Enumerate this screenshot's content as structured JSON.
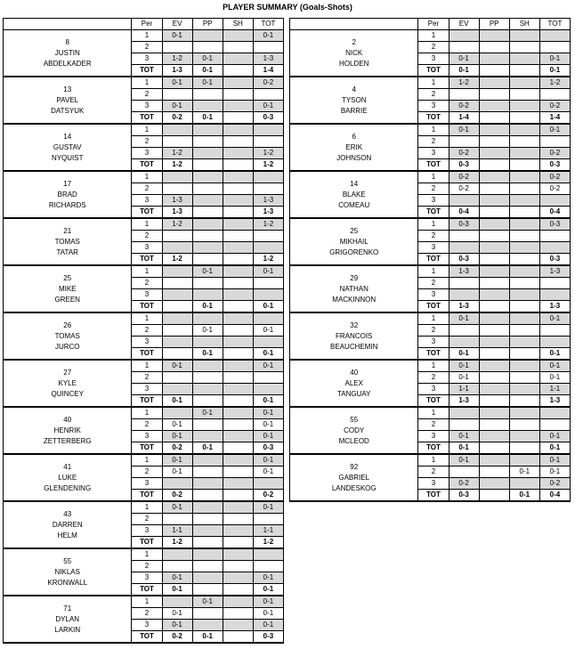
{
  "title": "PLAYER SUMMARY (Goals-Shots)",
  "headers": [
    "Per",
    "EV",
    "PP",
    "SH",
    "TOT"
  ],
  "left_players": [
    {
      "number": "8",
      "first": "JUSTIN",
      "last": "ABDELKADER",
      "rows": [
        {
          "per": "1",
          "ev": "0-1",
          "pp": "",
          "sh": "",
          "tot": "0-1"
        },
        {
          "per": "2",
          "ev": "",
          "pp": "",
          "sh": "",
          "tot": ""
        },
        {
          "per": "3",
          "ev": "1-2",
          "pp": "0-1",
          "sh": "",
          "tot": "1-3"
        },
        {
          "per": "TOT",
          "ev": "1-3",
          "pp": "0-1",
          "sh": "",
          "tot": "1-4"
        }
      ]
    },
    {
      "number": "13",
      "first": "PAVEL",
      "last": "DATSYUK",
      "rows": [
        {
          "per": "1",
          "ev": "0-1",
          "pp": "0-1",
          "sh": "",
          "tot": "0-2"
        },
        {
          "per": "2",
          "ev": "",
          "pp": "",
          "sh": "",
          "tot": ""
        },
        {
          "per": "3",
          "ev": "0-1",
          "pp": "",
          "sh": "",
          "tot": "0-1"
        },
        {
          "per": "TOT",
          "ev": "0-2",
          "pp": "0-1",
          "sh": "",
          "tot": "0-3"
        }
      ]
    },
    {
      "number": "14",
      "first": "GUSTAV",
      "last": "NYQUIST",
      "rows": [
        {
          "per": "1",
          "ev": "",
          "pp": "",
          "sh": "",
          "tot": ""
        },
        {
          "per": "2",
          "ev": "",
          "pp": "",
          "sh": "",
          "tot": ""
        },
        {
          "per": "3",
          "ev": "1-2",
          "pp": "",
          "sh": "",
          "tot": "1-2"
        },
        {
          "per": "TOT",
          "ev": "1-2",
          "pp": "",
          "sh": "",
          "tot": "1-2"
        }
      ]
    },
    {
      "number": "17",
      "first": "BRAD",
      "last": "RICHARDS",
      "rows": [
        {
          "per": "1",
          "ev": "",
          "pp": "",
          "sh": "",
          "tot": ""
        },
        {
          "per": "2",
          "ev": "",
          "pp": "",
          "sh": "",
          "tot": ""
        },
        {
          "per": "3",
          "ev": "1-3",
          "pp": "",
          "sh": "",
          "tot": "1-3"
        },
        {
          "per": "TOT",
          "ev": "1-3",
          "pp": "",
          "sh": "",
          "tot": "1-3"
        }
      ]
    },
    {
      "number": "21",
      "first": "TOMAS",
      "last": "TATAR",
      "rows": [
        {
          "per": "1",
          "ev": "1-2",
          "pp": "",
          "sh": "",
          "tot": "1-2"
        },
        {
          "per": "2",
          "ev": "",
          "pp": "",
          "sh": "",
          "tot": ""
        },
        {
          "per": "3",
          "ev": "",
          "pp": "",
          "sh": "",
          "tot": ""
        },
        {
          "per": "TOT",
          "ev": "1-2",
          "pp": "",
          "sh": "",
          "tot": "1-2"
        }
      ]
    },
    {
      "number": "25",
      "first": "MIKE",
      "last": "GREEN",
      "rows": [
        {
          "per": "1",
          "ev": "",
          "pp": "0-1",
          "sh": "",
          "tot": "0-1"
        },
        {
          "per": "2",
          "ev": "",
          "pp": "",
          "sh": "",
          "tot": ""
        },
        {
          "per": "3",
          "ev": "",
          "pp": "",
          "sh": "",
          "tot": ""
        },
        {
          "per": "TOT",
          "ev": "",
          "pp": "0-1",
          "sh": "",
          "tot": "0-1"
        }
      ]
    },
    {
      "number": "26",
      "first": "TOMAS",
      "last": "JURCO",
      "rows": [
        {
          "per": "1",
          "ev": "",
          "pp": "",
          "sh": "",
          "tot": ""
        },
        {
          "per": "2",
          "ev": "",
          "pp": "0-1",
          "sh": "",
          "tot": "0-1"
        },
        {
          "per": "3",
          "ev": "",
          "pp": "",
          "sh": "",
          "tot": ""
        },
        {
          "per": "TOT",
          "ev": "",
          "pp": "0-1",
          "sh": "",
          "tot": "0-1"
        }
      ]
    },
    {
      "number": "27",
      "first": "KYLE",
      "last": "QUINCEY",
      "rows": [
        {
          "per": "1",
          "ev": "0-1",
          "pp": "",
          "sh": "",
          "tot": "0-1"
        },
        {
          "per": "2",
          "ev": "",
          "pp": "",
          "sh": "",
          "tot": ""
        },
        {
          "per": "3",
          "ev": "",
          "pp": "",
          "sh": "",
          "tot": ""
        },
        {
          "per": "TOT",
          "ev": "0-1",
          "pp": "",
          "sh": "",
          "tot": "0-1"
        }
      ]
    },
    {
      "number": "40",
      "first": "HENRIK",
      "last": "ZETTERBERG",
      "rows": [
        {
          "per": "1",
          "ev": "",
          "pp": "0-1",
          "sh": "",
          "tot": "0-1"
        },
        {
          "per": "2",
          "ev": "0-1",
          "pp": "",
          "sh": "",
          "tot": "0-1"
        },
        {
          "per": "3",
          "ev": "0-1",
          "pp": "",
          "sh": "",
          "tot": "0-1"
        },
        {
          "per": "TOT",
          "ev": "0-2",
          "pp": "0-1",
          "sh": "",
          "tot": "0-3"
        }
      ]
    },
    {
      "number": "41",
      "first": "LUKE",
      "last": "GLENDENING",
      "rows": [
        {
          "per": "1",
          "ev": "0-1",
          "pp": "",
          "sh": "",
          "tot": "0-1"
        },
        {
          "per": "2",
          "ev": "0-1",
          "pp": "",
          "sh": "",
          "tot": "0-1"
        },
        {
          "per": "3",
          "ev": "",
          "pp": "",
          "sh": "",
          "tot": ""
        },
        {
          "per": "TOT",
          "ev": "0-2",
          "pp": "",
          "sh": "",
          "tot": "0-2"
        }
      ]
    },
    {
      "number": "43",
      "first": "DARREN",
      "last": "HELM",
      "rows": [
        {
          "per": "1",
          "ev": "0-1",
          "pp": "",
          "sh": "",
          "tot": "0-1"
        },
        {
          "per": "2",
          "ev": "",
          "pp": "",
          "sh": "",
          "tot": ""
        },
        {
          "per": "3",
          "ev": "1-1",
          "pp": "",
          "sh": "",
          "tot": "1-1"
        },
        {
          "per": "TOT",
          "ev": "1-2",
          "pp": "",
          "sh": "",
          "tot": "1-2"
        }
      ]
    },
    {
      "number": "55",
      "first": "NIKLAS",
      "last": "KRONWALL",
      "rows": [
        {
          "per": "1",
          "ev": "",
          "pp": "",
          "sh": "",
          "tot": ""
        },
        {
          "per": "2",
          "ev": "",
          "pp": "",
          "sh": "",
          "tot": ""
        },
        {
          "per": "3",
          "ev": "0-1",
          "pp": "",
          "sh": "",
          "tot": "0-1"
        },
        {
          "per": "TOT",
          "ev": "0-1",
          "pp": "",
          "sh": "",
          "tot": "0-1"
        }
      ]
    },
    {
      "number": "71",
      "first": "DYLAN",
      "last": "LARKIN",
      "rows": [
        {
          "per": "1",
          "ev": "",
          "pp": "0-1",
          "sh": "",
          "tot": "0-1"
        },
        {
          "per": "2",
          "ev": "0-1",
          "pp": "",
          "sh": "",
          "tot": "0-1"
        },
        {
          "per": "3",
          "ev": "0-1",
          "pp": "",
          "sh": "",
          "tot": "0-1"
        },
        {
          "per": "TOT",
          "ev": "0-2",
          "pp": "0-1",
          "sh": "",
          "tot": "0-3"
        }
      ]
    }
  ],
  "right_players": [
    {
      "number": "2",
      "first": "NICK",
      "last": "HOLDEN",
      "rows": [
        {
          "per": "1",
          "ev": "",
          "pp": "",
          "sh": "",
          "tot": ""
        },
        {
          "per": "2",
          "ev": "",
          "pp": "",
          "sh": "",
          "tot": ""
        },
        {
          "per": "3",
          "ev": "0-1",
          "pp": "",
          "sh": "",
          "tot": "0-1"
        },
        {
          "per": "TOT",
          "ev": "0-1",
          "pp": "",
          "sh": "",
          "tot": "0-1"
        }
      ]
    },
    {
      "number": "4",
      "first": "TYSON",
      "last": "BARRIE",
      "rows": [
        {
          "per": "1",
          "ev": "1-2",
          "pp": "",
          "sh": "",
          "tot": "1-2"
        },
        {
          "per": "2",
          "ev": "",
          "pp": "",
          "sh": "",
          "tot": ""
        },
        {
          "per": "3",
          "ev": "0-2",
          "pp": "",
          "sh": "",
          "tot": "0-2"
        },
        {
          "per": "TOT",
          "ev": "1-4",
          "pp": "",
          "sh": "",
          "tot": "1-4"
        }
      ]
    },
    {
      "number": "6",
      "first": "ERIK",
      "last": "JOHNSON",
      "rows": [
        {
          "per": "1",
          "ev": "0-1",
          "pp": "",
          "sh": "",
          "tot": "0-1"
        },
        {
          "per": "2",
          "ev": "",
          "pp": "",
          "sh": "",
          "tot": ""
        },
        {
          "per": "3",
          "ev": "0-2",
          "pp": "",
          "sh": "",
          "tot": "0-2"
        },
        {
          "per": "TOT",
          "ev": "0-3",
          "pp": "",
          "sh": "",
          "tot": "0-3"
        }
      ]
    },
    {
      "number": "14",
      "first": "BLAKE",
      "last": "COMEAU",
      "rows": [
        {
          "per": "1",
          "ev": "0-2",
          "pp": "",
          "sh": "",
          "tot": "0-2"
        },
        {
          "per": "2",
          "ev": "0-2",
          "pp": "",
          "sh": "",
          "tot": "0-2"
        },
        {
          "per": "3",
          "ev": "",
          "pp": "",
          "sh": "",
          "tot": ""
        },
        {
          "per": "TOT",
          "ev": "0-4",
          "pp": "",
          "sh": "",
          "tot": "0-4"
        }
      ]
    },
    {
      "number": "25",
      "first": "MIKHAIL",
      "last": "GRIGORENKO",
      "rows": [
        {
          "per": "1",
          "ev": "0-3",
          "pp": "",
          "sh": "",
          "tot": "0-3"
        },
        {
          "per": "2",
          "ev": "",
          "pp": "",
          "sh": "",
          "tot": ""
        },
        {
          "per": "3",
          "ev": "",
          "pp": "",
          "sh": "",
          "tot": ""
        },
        {
          "per": "TOT",
          "ev": "0-3",
          "pp": "",
          "sh": "",
          "tot": "0-3"
        }
      ]
    },
    {
      "number": "29",
      "first": "NATHAN",
      "last": "MACKINNON",
      "rows": [
        {
          "per": "1",
          "ev": "1-3",
          "pp": "",
          "sh": "",
          "tot": "1-3"
        },
        {
          "per": "2",
          "ev": "",
          "pp": "",
          "sh": "",
          "tot": ""
        },
        {
          "per": "3",
          "ev": "",
          "pp": "",
          "sh": "",
          "tot": ""
        },
        {
          "per": "TOT",
          "ev": "1-3",
          "pp": "",
          "sh": "",
          "tot": "1-3"
        }
      ]
    },
    {
      "number": "32",
      "first": "FRANCOIS",
      "last": "BEAUCHEMIN",
      "rows": [
        {
          "per": "1",
          "ev": "0-1",
          "pp": "",
          "sh": "",
          "tot": "0-1"
        },
        {
          "per": "2",
          "ev": "",
          "pp": "",
          "sh": "",
          "tot": ""
        },
        {
          "per": "3",
          "ev": "",
          "pp": "",
          "sh": "",
          "tot": ""
        },
        {
          "per": "TOT",
          "ev": "0-1",
          "pp": "",
          "sh": "",
          "tot": "0-1"
        }
      ]
    },
    {
      "number": "40",
      "first": "ALEX",
      "last": "TANGUAY",
      "rows": [
        {
          "per": "1",
          "ev": "0-1",
          "pp": "",
          "sh": "",
          "tot": "0-1"
        },
        {
          "per": "2",
          "ev": "0-1",
          "pp": "",
          "sh": "",
          "tot": "0-1"
        },
        {
          "per": "3",
          "ev": "1-1",
          "pp": "",
          "sh": "",
          "tot": "1-1"
        },
        {
          "per": "TOT",
          "ev": "1-3",
          "pp": "",
          "sh": "",
          "tot": "1-3"
        }
      ]
    },
    {
      "number": "55",
      "first": "CODY",
      "last": "MCLEOD",
      "rows": [
        {
          "per": "1",
          "ev": "",
          "pp": "",
          "sh": "",
          "tot": ""
        },
        {
          "per": "2",
          "ev": "",
          "pp": "",
          "sh": "",
          "tot": ""
        },
        {
          "per": "3",
          "ev": "0-1",
          "pp": "",
          "sh": "",
          "tot": "0-1"
        },
        {
          "per": "TOT",
          "ev": "0-1",
          "pp": "",
          "sh": "",
          "tot": "0-1"
        }
      ]
    },
    {
      "number": "92",
      "first": "GABRIEL",
      "last": "LANDESKOG",
      "rows": [
        {
          "per": "1",
          "ev": "0-1",
          "pp": "",
          "sh": "",
          "tot": "0-1"
        },
        {
          "per": "2",
          "ev": "",
          "pp": "",
          "sh": "0-1",
          "tot": "0-1"
        },
        {
          "per": "3",
          "ev": "0-2",
          "pp": "",
          "sh": "",
          "tot": "0-2"
        },
        {
          "per": "TOT",
          "ev": "0-3",
          "pp": "",
          "sh": "0-1",
          "tot": "0-4"
        }
      ]
    }
  ]
}
